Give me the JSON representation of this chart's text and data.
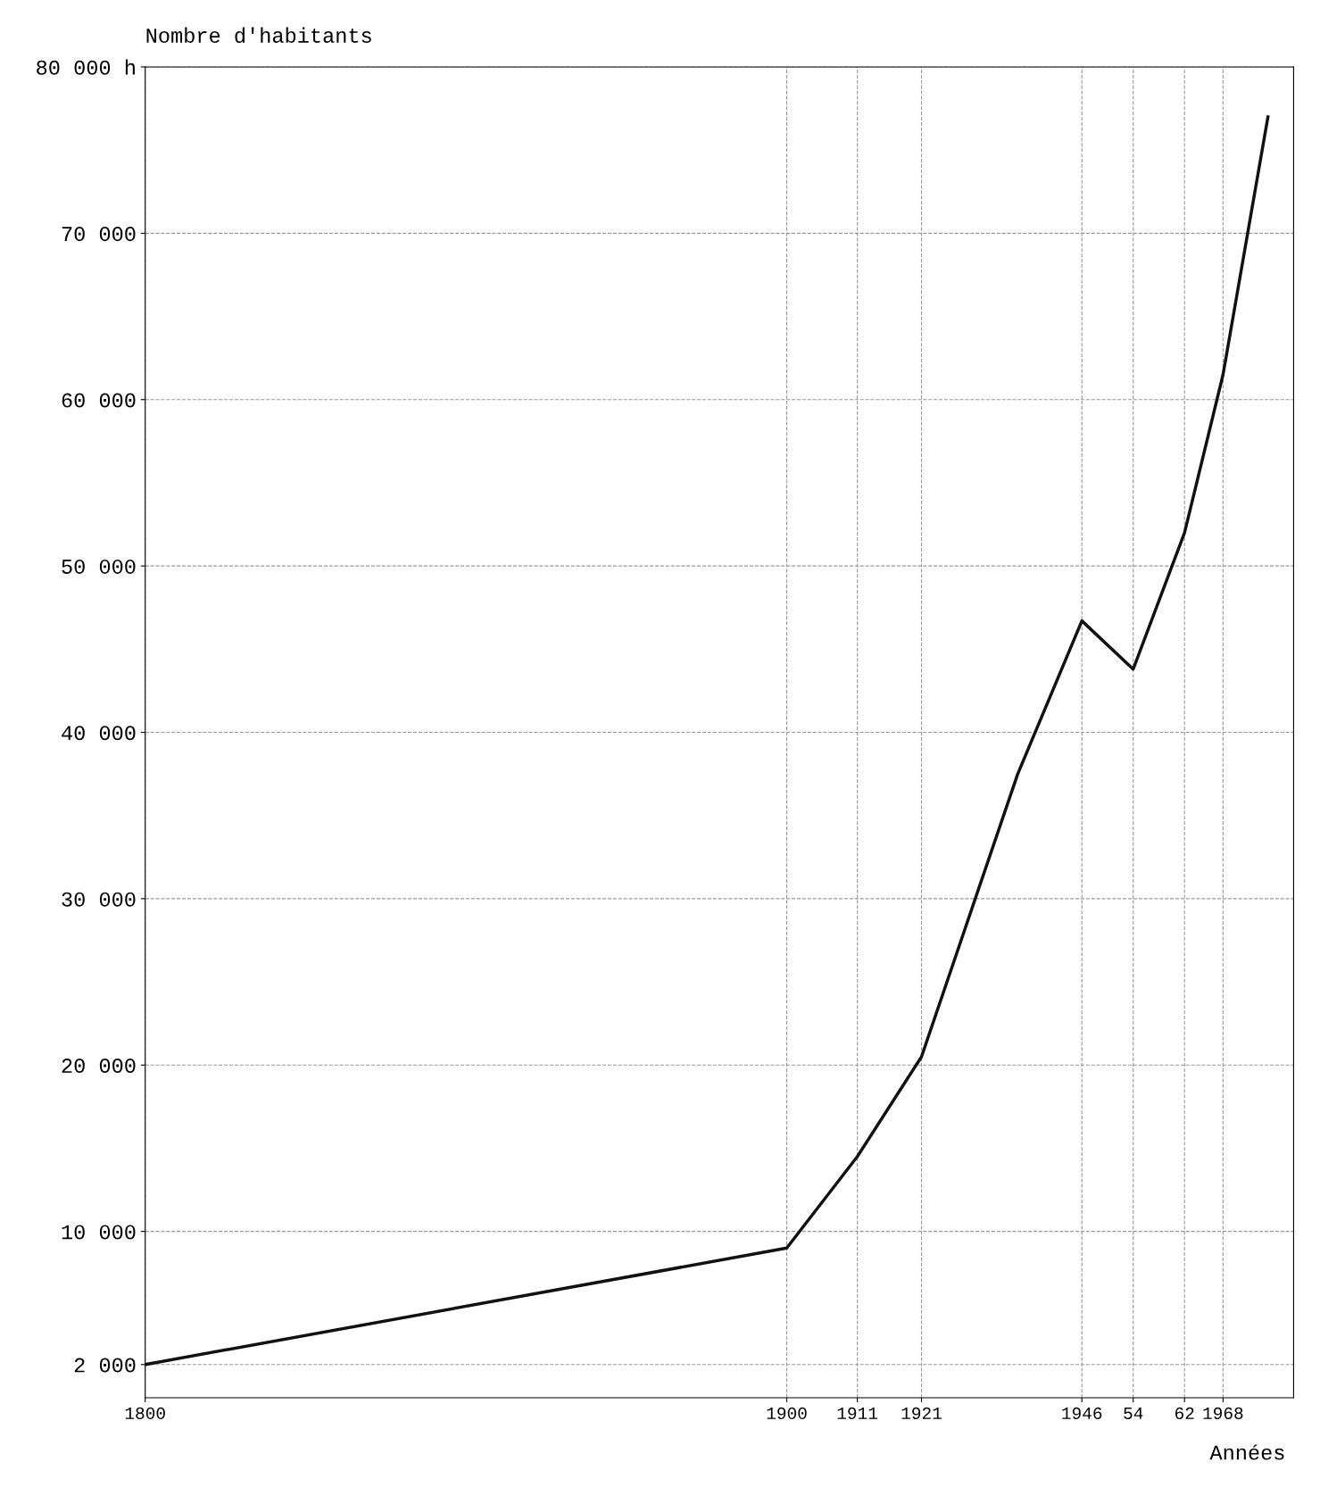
{
  "chart_data": {
    "type": "line",
    "xlabel": "Années",
    "ylabel": "Nombre d'habitants",
    "x": [
      1800,
      1900,
      1911,
      1921,
      1936,
      1946,
      1954,
      1962,
      1968,
      1975
    ],
    "series": [
      {
        "color": "#111111",
        "values": [
          2000,
          9000,
          14500,
          20500,
          37500,
          46700,
          43800,
          52000,
          61500,
          77000
        ]
      }
    ],
    "xlim": [
      1800,
      1979
    ],
    "ylim": [
      0,
      80000
    ],
    "xticks": [
      1800,
      1900,
      1911,
      1921,
      1946,
      {
        "value": 1954,
        "label": "54"
      },
      {
        "value": 1962,
        "label": "62"
      },
      1968
    ],
    "yticks": [
      {
        "value": 2000,
        "label": "2 000"
      },
      {
        "value": 10000,
        "label": "10 000"
      },
      {
        "value": 20000,
        "label": "20 000"
      },
      {
        "value": 30000,
        "label": "30 000"
      },
      {
        "value": 40000,
        "label": "40 000"
      },
      {
        "value": 50000,
        "label": "50 000"
      },
      {
        "value": 60000,
        "label": "60 000"
      },
      {
        "value": 70000,
        "label": "70 000"
      },
      {
        "value": 80000,
        "label": "80 000 h"
      }
    ],
    "grid": true,
    "line_style": "solid"
  }
}
